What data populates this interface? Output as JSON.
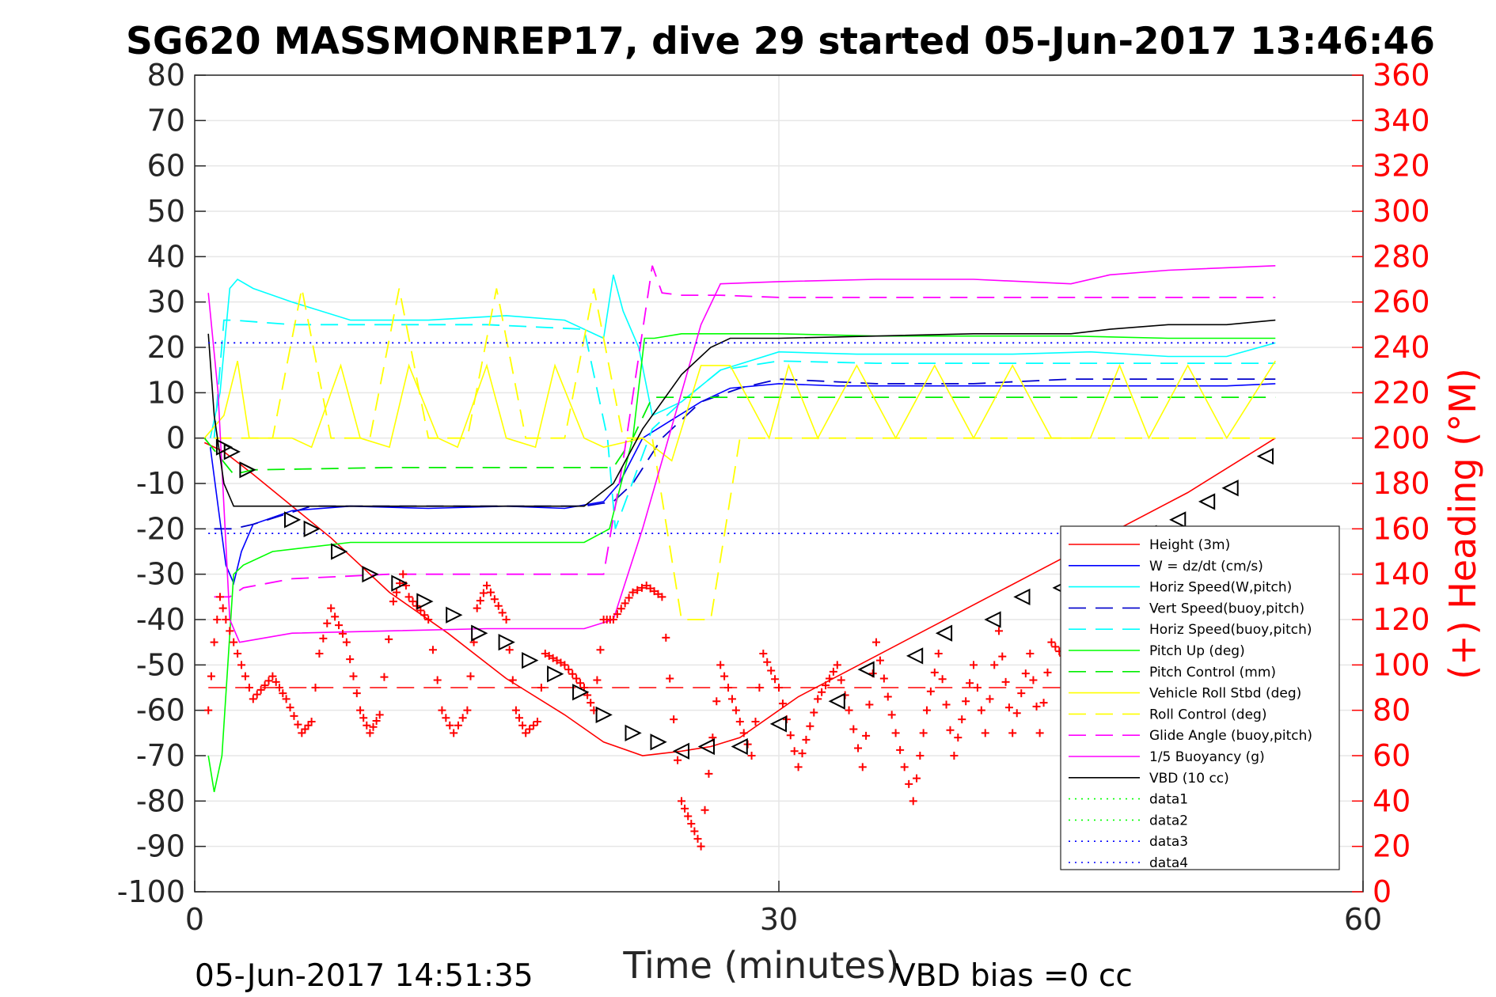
{
  "chart_data": {
    "type": "line",
    "title": "SG620 MASSMONREP17, dive 29 started 05-Jun-2017 13:46:46",
    "xlabel": "Time (minutes)",
    "ylabel_right": "(+) Heading (°M)",
    "xlim": [
      0,
      60
    ],
    "ylim_left": [
      -100,
      80
    ],
    "ylim_right": [
      0,
      360
    ],
    "xticks": [
      "0",
      "30",
      "60"
    ],
    "yticks_left": [
      "80",
      "70",
      "60",
      "50",
      "40",
      "30",
      "20",
      "10",
      "0",
      "-10",
      "-20",
      "-30",
      "-40",
      "-50",
      "-60",
      "-70",
      "-80",
      "-90",
      "-100"
    ],
    "yticks_right": [
      "360",
      "340",
      "320",
      "300",
      "280",
      "260",
      "240",
      "220",
      "200",
      "180",
      "160",
      "140",
      "120",
      "100",
      "80",
      "60",
      "40",
      "20",
      "0"
    ],
    "grid": true,
    "legend_position": "bottom-right",
    "footer_left": "05-Jun-2017 14:51:35",
    "footer_right": "VBD bias =0 cc",
    "colors": {
      "red": "#ff0000",
      "blue": "#0000ff",
      "cyan": "#00ffff",
      "green": "#00ff00",
      "yellow": "#ffff00",
      "magenta": "#ff00ff",
      "black": "#000000"
    },
    "series": [
      {
        "name": "Height (3m)",
        "color": "#ff0000",
        "dash": "solid",
        "axis": "left",
        "x": [
          0.5,
          1.5,
          3,
          5,
          7,
          10,
          13,
          16,
          19,
          21,
          23,
          25,
          26.5,
          28,
          31,
          35,
          39,
          43,
          47,
          51,
          55.5
        ],
        "y": [
          -1,
          -3,
          -8,
          -15,
          -22,
          -34,
          -43,
          -53,
          -61,
          -67,
          -70,
          -69,
          -68,
          -66,
          -57,
          -48,
          -39,
          -30,
          -21,
          -12,
          0
        ]
      },
      {
        "name": "W = dz/dt (cm/s)",
        "color": "#0000ff",
        "dash": "solid",
        "axis": "left",
        "x": [
          0.8,
          1.2,
          1.6,
          2.0,
          2.4,
          3,
          5,
          8,
          12,
          16,
          19,
          21,
          21.8,
          23,
          24.5,
          26,
          27.5,
          30,
          33,
          36,
          40,
          45,
          50,
          53,
          55.5
        ],
        "y": [
          -2,
          -15,
          -28,
          -32,
          -25,
          -19,
          -16,
          -15,
          -15.5,
          -15,
          -15.5,
          -14,
          -10,
          0,
          4,
          8,
          11,
          12,
          11.5,
          11.5,
          11.5,
          11.5,
          11.5,
          11.5,
          12
        ]
      },
      {
        "name": "Horiz Speed(W,pitch)",
        "color": "#00ffff",
        "dash": "solid",
        "axis": "left",
        "x": [
          0.8,
          1.3,
          1.8,
          2.2,
          3,
          5,
          8,
          12,
          16,
          19,
          21,
          21.5,
          22,
          22.8,
          23.5,
          25,
          27,
          30,
          34,
          38,
          42,
          46,
          50,
          53,
          55.5
        ],
        "y": [
          0,
          10,
          33,
          35,
          33,
          30,
          26,
          26,
          27,
          26,
          22,
          36,
          28,
          20,
          5,
          8,
          15,
          19,
          18.5,
          18.5,
          18.5,
          19,
          18,
          18,
          21
        ]
      },
      {
        "name": "Vert Speed(buoy,pitch)",
        "color": "#0000cc",
        "dash": "long",
        "axis": "left",
        "x": [
          1.0,
          2.0,
          3,
          6,
          10,
          15,
          20,
          21.5,
          22.5,
          24,
          26,
          28,
          30,
          35,
          40,
          45,
          50,
          53,
          55.5
        ],
        "y": [
          -20,
          -20,
          -19,
          -15,
          -15,
          -15,
          -15,
          -14,
          -10,
          0,
          8,
          11,
          13,
          12,
          12,
          13,
          13,
          13,
          13
        ]
      },
      {
        "name": "Horiz Speed(buoy,pitch)",
        "color": "#00ffff",
        "dash": "long",
        "axis": "left",
        "x": [
          1.0,
          1.5,
          2,
          5,
          10,
          15,
          20,
          21.2,
          21.6,
          23.5,
          25,
          27,
          30,
          35,
          40,
          45,
          50,
          55.5
        ],
        "y": [
          0,
          26,
          26,
          25,
          25,
          25,
          24,
          0,
          -20,
          2,
          8,
          15,
          17,
          16.5,
          16.5,
          16.5,
          16.5,
          16.5
        ]
      },
      {
        "name": "Pitch Up (deg)",
        "color": "#00ff00",
        "dash": "solid",
        "axis": "left",
        "x": [
          0.7,
          1.0,
          1.4,
          2.0,
          2.5,
          4,
          8,
          12,
          16,
          20,
          21.3,
          22.5,
          23.1,
          23.6,
          25,
          30,
          35,
          40,
          45,
          50,
          53,
          55.5
        ],
        "y": [
          -70,
          -78,
          -70,
          -30,
          -28,
          -25,
          -23,
          -23,
          -23,
          -23,
          -20,
          0,
          22,
          22,
          23,
          23,
          22.5,
          22.5,
          22.5,
          22,
          22,
          22
        ]
      },
      {
        "name": "Pitch Control (mm)",
        "color": "#00ee00",
        "dash": "long",
        "axis": "left",
        "x": [
          0.5,
          2.0,
          3,
          10,
          20,
          21.5,
          22.5,
          23.5,
          26,
          28,
          30,
          40,
          50,
          55.5
        ],
        "y": [
          0,
          -8,
          -7,
          -6.5,
          -6.5,
          -6.5,
          0,
          9,
          9,
          9,
          9,
          9,
          9,
          9
        ]
      },
      {
        "name": "Vehicle Roll Stbd (deg)",
        "color": "#ffff00",
        "dash": "solid",
        "axis": "left",
        "x": [
          0.5,
          1.5,
          2.2,
          2.8,
          3.5,
          5,
          6,
          7.5,
          8.5,
          10,
          11,
          12.5,
          13.5,
          15,
          16,
          17.5,
          18.5,
          20,
          21,
          23,
          24.5,
          26,
          27.5,
          29.5,
          30.5,
          32,
          34,
          36,
          38,
          40,
          42,
          44,
          46,
          47.5,
          49,
          51,
          53,
          55.5
        ],
        "y": [
          0,
          5,
          17,
          0,
          0,
          0,
          -2,
          16,
          0,
          -2,
          16,
          0,
          -2,
          16,
          0,
          -2,
          16,
          0,
          -2,
          0,
          -5,
          16,
          16,
          0,
          16,
          0,
          16,
          0,
          16,
          0,
          16,
          0,
          0,
          16,
          0,
          16,
          0,
          17
        ]
      },
      {
        "name": "Roll Control (deg)",
        "color": "#ffff00",
        "dash": "long",
        "axis": "left",
        "x": [
          1,
          2,
          4,
          5.5,
          7,
          9,
          10.5,
          12,
          14,
          15.5,
          17,
          19,
          20.5,
          22,
          23.5,
          25,
          26.5,
          28,
          30,
          35,
          40,
          45,
          50,
          53,
          55.5
        ],
        "y": [
          0,
          0,
          0,
          33,
          0,
          0,
          33,
          0,
          0,
          33,
          0,
          0,
          33,
          0,
          0,
          -40,
          -40,
          0,
          0,
          0,
          0,
          0,
          0,
          0,
          0
        ]
      },
      {
        "name": "Glide Angle (buoy,pitch)",
        "color": "#ff00ff",
        "dash": "long",
        "axis": "left",
        "x": [
          1.0,
          1.8,
          2.5,
          5,
          10,
          15,
          20,
          21,
          22,
          23.5,
          24,
          25,
          27,
          30,
          35,
          40,
          45,
          50,
          55.5
        ],
        "y": [
          -35,
          -35,
          -33,
          -31,
          -30,
          -30,
          -30,
          -30,
          -5,
          38,
          32,
          31.5,
          31.5,
          31,
          31,
          31,
          31,
          31,
          31
        ]
      },
      {
        "name": "1/5 Buoyancy (g)",
        "color": "#ff00ff",
        "dash": "solid",
        "axis": "left",
        "x": [
          0.7,
          1.2,
          1.8,
          2.3,
          5,
          10,
          15,
          20,
          21.5,
          23,
          25,
          26,
          27,
          30,
          35,
          40,
          45,
          47,
          50,
          55.5
        ],
        "y": [
          32,
          10,
          -40,
          -45,
          -43,
          -42.5,
          -42,
          -42,
          -40,
          -20,
          10,
          25,
          34,
          34.5,
          35,
          35,
          34,
          36,
          37,
          38
        ]
      },
      {
        "name": "VBD (10 cc)",
        "color": "#000000",
        "dash": "solid",
        "axis": "left",
        "x": [
          0.7,
          1.0,
          1.5,
          2.0,
          5,
          10,
          15,
          20,
          21.5,
          23,
          25,
          26.5,
          27.5,
          30,
          35,
          40,
          45,
          47,
          50,
          53,
          55.5
        ],
        "y": [
          23,
          5,
          -10,
          -15,
          -15,
          -15,
          -15,
          -15,
          -10,
          2,
          14,
          20,
          22,
          22,
          22.5,
          23,
          23,
          24,
          25,
          25,
          26
        ]
      },
      {
        "name": "data1",
        "color": "#00ff00",
        "dash": "dotted",
        "axis": "left",
        "x": [
          0,
          60
        ],
        "y": [
          -101,
          -101
        ]
      },
      {
        "name": "data2",
        "color": "#00ff00",
        "dash": "dotted",
        "axis": "left",
        "x": [
          0,
          60
        ],
        "y": [
          -101,
          -101
        ]
      },
      {
        "name": "data3",
        "color": "#0000ff",
        "dash": "dotted",
        "axis": "left",
        "x": [
          0.7,
          55.5
        ],
        "y": [
          21,
          21
        ]
      },
      {
        "name": "data4",
        "color": "#0000ff",
        "dash": "dotted",
        "axis": "left",
        "x": [
          0.7,
          55.5
        ],
        "y": [
          -21,
          -21
        ]
      }
    ],
    "heading_target": {
      "color": "#ff0000",
      "dash": "long",
      "axis": "right",
      "x": [
        0.7,
        55.5
      ],
      "y": [
        90,
        90
      ]
    },
    "heading_points": {
      "color": "#ff0000",
      "marker": "+",
      "axis": "right",
      "x": [
        0.7,
        1.0,
        1.3,
        1.6,
        2.0,
        3,
        4,
        4.7,
        5.5,
        6,
        6.4,
        7,
        7.8,
        8.5,
        9,
        9.5,
        10.2,
        10.7,
        11,
        12,
        12.7,
        13.3,
        14,
        14.5,
        15,
        16,
        16.5,
        17,
        17.6,
        18,
        19,
        20,
        20.5,
        21,
        21.5,
        22.5,
        23.2,
        24,
        25,
        25.5,
        26,
        27,
        28,
        28.6,
        29.2,
        30,
        31,
        32,
        33,
        33.6,
        34.3,
        35,
        36,
        36.9,
        37.6,
        38.2,
        39,
        40,
        40.6,
        41.3,
        42,
        42.9,
        43.4,
        44,
        45,
        45.8,
        46.5,
        47.3,
        48,
        48.7,
        49.4,
        50.1,
        50.8,
        51.5,
        52.3,
        53,
        53.7,
        54.4,
        55.2
      ],
      "y": [
        80,
        110,
        130,
        120,
        110,
        85,
        95,
        85,
        70,
        75,
        105,
        125,
        110,
        80,
        70,
        78,
        128,
        140,
        130,
        120,
        80,
        70,
        80,
        125,
        135,
        120,
        80,
        70,
        75,
        105,
        100,
        90,
        80,
        120,
        120,
        132,
        135,
        130,
        40,
        30,
        20,
        100,
        75,
        60,
        105,
        90,
        55,
        85,
        100,
        80,
        55,
        110,
        70,
        40,
        80,
        105,
        60,
        100,
        70,
        115,
        70,
        105,
        70,
        110,
        100,
        115,
        90,
        70,
        110,
        80,
        100,
        85,
        105,
        90,
        110,
        95,
        110,
        100,
        105
      ]
    },
    "triangle_markers": {
      "color": "#000000",
      "axis": "left",
      "x": [
        1.5,
        1.9,
        2.7,
        5,
        6,
        7.4,
        9,
        10.5,
        11.8,
        13.3,
        14.6,
        16,
        17.2,
        18.5,
        19.8,
        21,
        22.5,
        23.8,
        25,
        26.3,
        28,
        30,
        33,
        34.5,
        37,
        38.5,
        41,
        42.5,
        44.5,
        45.5,
        47,
        49,
        50.5,
        52,
        53.2,
        55
      ],
      "y": [
        -2,
        -3,
        -7,
        -18,
        -20,
        -25,
        -30,
        -32,
        -36,
        -39,
        -43,
        -45,
        -49,
        -52,
        -56,
        -61,
        -65,
        -67,
        -69,
        -68,
        -68,
        -63,
        -58,
        -51,
        -48,
        -43,
        -40,
        -35,
        -33,
        -28,
        -26,
        -21,
        -18,
        -14,
        -11,
        -4
      ]
    }
  }
}
